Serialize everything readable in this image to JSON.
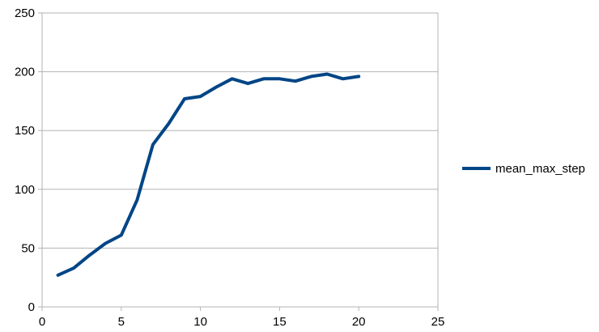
{
  "chart_data": {
    "type": "line",
    "title": "",
    "xlabel": "",
    "ylabel": "",
    "xlim": [
      0,
      25
    ],
    "ylim": [
      0,
      250
    ],
    "x_ticks": [
      0,
      5,
      10,
      15,
      20,
      25
    ],
    "y_ticks": [
      0,
      50,
      100,
      150,
      200,
      250
    ],
    "grid": "horizontal",
    "legend_position": "right",
    "series": [
      {
        "name": "mean_max_step",
        "color": "#004586",
        "x": [
          1,
          2,
          3,
          4,
          5,
          6,
          7,
          8,
          9,
          10,
          11,
          12,
          13,
          14,
          15,
          16,
          17,
          18,
          19,
          20
        ],
        "values": [
          27,
          33,
          44,
          54,
          61,
          91,
          138,
          156,
          177,
          179,
          187,
          194,
          190,
          194,
          194,
          192,
          196,
          198,
          194,
          196
        ]
      }
    ]
  }
}
